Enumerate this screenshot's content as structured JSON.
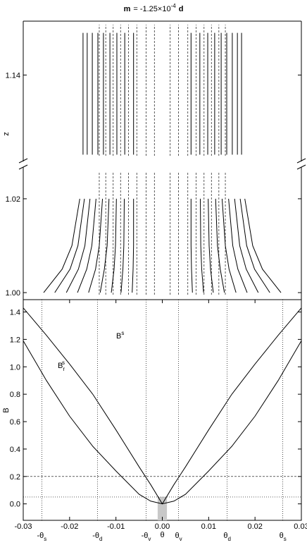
{
  "chart_data": [
    {
      "type": "line",
      "title": {
        "m": "m",
        "eq": "= -1.25×10",
        "exp": "-4",
        "d": "d"
      },
      "ylabel": "z",
      "xlim": [
        -0.03,
        0.03
      ],
      "ylim_segments": [
        [
          0.9985,
          1.0266
        ],
        [
          1.1217,
          1.1515
        ]
      ],
      "yticks": [
        {
          "value": 1.0,
          "label": "1.00"
        },
        1.02,
        1.14
      ],
      "z": [
        1.0,
        1.005,
        1.01,
        1.02,
        1.027,
        1.123,
        1.149
      ],
      "series": [
        {
          "color": "#000000",
          "x": [
            -0.0256,
            -0.0216,
            -0.0195,
            -0.0178,
            -0.0174,
            -0.0171,
            -0.0171
          ]
        },
        {
          "color": "#000000",
          "x": [
            -0.0232,
            -0.0199,
            -0.0182,
            -0.0168,
            -0.0164,
            -0.0162,
            -0.0162
          ]
        },
        {
          "color": "#000000",
          "x": [
            -0.0207,
            -0.0181,
            -0.0167,
            -0.0156,
            -0.0153,
            -0.0151,
            -0.0151
          ]
        },
        {
          "color": "#000000",
          "x": [
            -0.0183,
            -0.0163,
            -0.0152,
            -0.0143,
            -0.014,
            -0.0139,
            -0.0139
          ]
        },
        {
          "color": "#000000",
          "x": [
            -0.0159,
            -0.0144,
            -0.0136,
            -0.0129,
            -0.0128,
            -0.0127,
            -0.0127
          ]
        },
        {
          "color": "#000000",
          "x": [
            -0.0134,
            -0.0125,
            -0.0119,
            -0.0115,
            -0.0114,
            -0.0113,
            -0.0113
          ]
        },
        {
          "color": "#000000",
          "x": [
            -0.011,
            -0.0104,
            -0.0101,
            -0.0099,
            -0.0098,
            -0.0098,
            -0.0098
          ]
        },
        {
          "color": "#000000",
          "x": [
            -0.0089,
            -0.0085,
            -0.0083,
            -0.0082,
            -0.0082,
            -0.0081,
            -0.0081
          ]
        },
        {
          "color": "#000000",
          "x": [
            -0.0065,
            -0.0063,
            -0.0062,
            -0.0062,
            -0.0062,
            -0.0062,
            -0.0062
          ]
        },
        {
          "color": "#000000",
          "x": [
            0.0065,
            0.0063,
            0.0062,
            0.0062,
            0.0062,
            0.0062,
            0.0062
          ]
        },
        {
          "color": "#000000",
          "x": [
            0.0089,
            0.0085,
            0.0083,
            0.0082,
            0.0082,
            0.0081,
            0.0081
          ]
        },
        {
          "color": "#000000",
          "x": [
            0.011,
            0.0104,
            0.0101,
            0.0099,
            0.0098,
            0.0098,
            0.0098
          ]
        },
        {
          "color": "#000000",
          "x": [
            0.0134,
            0.0125,
            0.0119,
            0.0115,
            0.0114,
            0.0113,
            0.0113
          ]
        },
        {
          "color": "#000000",
          "x": [
            0.0159,
            0.0144,
            0.0136,
            0.0129,
            0.0128,
            0.0127,
            0.0127
          ]
        },
        {
          "color": "#000000",
          "x": [
            0.0183,
            0.0163,
            0.0152,
            0.0143,
            0.014,
            0.0139,
            0.0139
          ]
        },
        {
          "color": "#000000",
          "x": [
            0.0207,
            0.0181,
            0.0167,
            0.0156,
            0.0153,
            0.0151,
            0.0151
          ]
        },
        {
          "color": "#000000",
          "x": [
            0.0232,
            0.0199,
            0.0182,
            0.0168,
            0.0164,
            0.0162,
            0.0162
          ]
        },
        {
          "color": "#000000",
          "x": [
            0.0256,
            0.0216,
            0.0195,
            0.0178,
            0.0174,
            0.0171,
            0.0171
          ]
        }
      ],
      "dashed_x": [
        -0.0136,
        -0.0122,
        -0.0106,
        -0.009,
        -0.0073,
        -0.0055,
        -0.0035,
        -0.0017,
        0.0017,
        0.0035,
        0.0055,
        0.0073,
        0.009,
        0.0106,
        0.0122,
        0.0136
      ]
    },
    {
      "type": "line",
      "xlabel": "θ",
      "ylabel": "B",
      "xlim": [
        -0.03,
        0.03
      ],
      "ylim": [
        -0.12,
        1.49
      ],
      "xticks": [
        -0.03,
        -0.02,
        -0.01,
        {
          "value": 0,
          "label": "0.00"
        },
        0.01,
        0.02,
        0.03
      ],
      "yticks": [
        {
          "value": 0,
          "label": "0.0"
        },
        0.2,
        0.4,
        0.6,
        0.8,
        {
          "value": 1,
          "label": "1.0"
        },
        1.2,
        1.4
      ],
      "x": [
        -0.03,
        -0.025,
        -0.02,
        -0.015,
        -0.01,
        -0.005,
        -0.0025,
        0,
        0.0025,
        0.005,
        0.01,
        0.015,
        0.02,
        0.025,
        0.03
      ],
      "series": [
        {
          "name": "B",
          "sup": "s",
          "color": "#000000",
          "values": [
            1.43,
            1.23,
            1.02,
            0.8,
            0.54,
            0.27,
            0.14,
            0,
            0.14,
            0.27,
            0.54,
            0.8,
            1.02,
            1.23,
            1.43
          ]
        },
        {
          "name": "B",
          "sub": "r",
          "sup": "s",
          "color": "#000000",
          "values": [
            1.19,
            0.9,
            0.64,
            0.42,
            0.24,
            0.07,
            0.02,
            0,
            0.02,
            0.07,
            0.24,
            0.42,
            0.64,
            0.9,
            1.19
          ]
        }
      ],
      "hlines": [
        {
          "value": 0.2,
          "style": "dashed"
        },
        {
          "value": 0.05,
          "style": "dotted"
        }
      ],
      "band": {
        "x": [
          -0.001,
          0.001
        ],
        "top": 0.05,
        "color": "#c8c8c8"
      },
      "markers": [
        {
          "value": -0.026,
          "label": "-θ",
          "sub": "s"
        },
        {
          "value": -0.014,
          "label": "-θ",
          "sub": "d"
        },
        {
          "value": -0.0035,
          "label": "-θ",
          "sub": "v"
        },
        {
          "value": 0.0035,
          "label": "θ",
          "sub": "v"
        },
        {
          "value": 0.014,
          "label": "θ",
          "sub": "d"
        },
        {
          "value": 0.026,
          "label": "θ",
          "sub": "s"
        }
      ]
    }
  ]
}
